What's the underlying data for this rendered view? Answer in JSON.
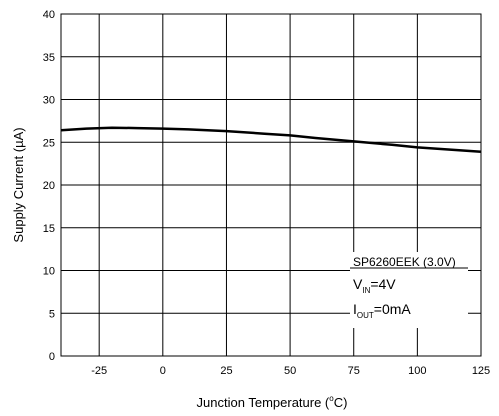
{
  "chart_data": {
    "type": "line",
    "title": "",
    "xlabel_main": "Junction Temperature (",
    "xlabel_sup": "o",
    "xlabel_tail": "C)",
    "ylabel": "Supply Current (µA)",
    "xlim": [
      -40,
      125
    ],
    "ylim": [
      0,
      40
    ],
    "x_ticks": [
      -25,
      0,
      25,
      50,
      75,
      100,
      125
    ],
    "y_ticks": [
      0,
      5,
      10,
      15,
      20,
      25,
      30,
      35,
      40
    ],
    "grid": true,
    "series": [
      {
        "x": [
          -40,
          -30,
          -20,
          -10,
          0,
          10,
          25,
          40,
          50,
          60,
          75,
          90,
          100,
          110,
          125
        ],
        "y": [
          26.4,
          26.6,
          26.7,
          26.65,
          26.6,
          26.5,
          26.3,
          26.0,
          25.8,
          25.5,
          25.1,
          24.7,
          24.4,
          24.2,
          23.9
        ]
      }
    ],
    "annotation": {
      "part": "SP6260EEK (3.0V)",
      "vin_main": "V",
      "vin_sub": "IN",
      "vin_value": "=4V",
      "iout_main": "I",
      "iout_sub": "OUT",
      "iout_value": "=0mA"
    }
  }
}
